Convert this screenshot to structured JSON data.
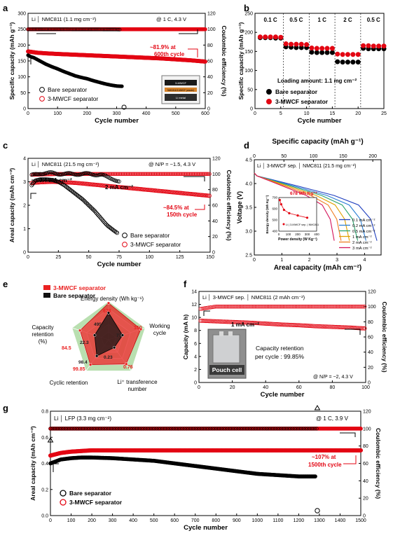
{
  "panel_letters": [
    "a",
    "b",
    "c",
    "d",
    "e",
    "f",
    "g"
  ],
  "chart_data": [
    {
      "panel": "a",
      "type": "scatter",
      "title": "Li │ NMC811 (1.1 mg cm⁻²)",
      "condition": "@ 1 C, 4.3 V",
      "xlabel": "Cycle number",
      "ylabel": "Specific capacity (mAh g⁻¹)",
      "y2label": "Coulombic efficiency (%)",
      "xlim": [
        0,
        600
      ],
      "ylim": [
        0,
        300
      ],
      "y2lim": [
        0,
        120
      ],
      "xticks": [
        "0",
        "100",
        "200",
        "300",
        "400",
        "500",
        "600"
      ],
      "yticks": [
        "0",
        "50",
        "100",
        "150",
        "200",
        "250",
        "300"
      ],
      "y2ticks": [
        "0",
        "20",
        "40",
        "60",
        "80",
        "100",
        "120"
      ],
      "annotation": [
        "~81.9% at",
        "600th cycle"
      ],
      "inset_labels": [
        "3-MWCF",
        "NMC811/3-MWCF (anode)",
        "Li metal"
      ],
      "series": [
        {
          "name": "Bare separator",
          "color": "#000000",
          "axis": "left",
          "x": [
            0,
            10,
            20,
            40,
            60,
            80,
            100,
            120,
            140,
            160,
            180,
            200,
            220,
            240,
            260,
            280,
            300,
            320
          ],
          "y": [
            168,
            163,
            160,
            150,
            140,
            132,
            125,
            117,
            110,
            103,
            98,
            94,
            88,
            83,
            78,
            74,
            71,
            70
          ]
        },
        {
          "name": "3-MWCF separator",
          "color": "#e30613",
          "axis": "left",
          "x": [
            0,
            30,
            60,
            100,
            150,
            200,
            250,
            300,
            350,
            400,
            450,
            500,
            550,
            600
          ],
          "y": [
            180,
            176,
            174,
            172,
            170,
            168,
            166,
            164,
            162,
            160,
            158,
            155,
            152,
            148
          ]
        },
        {
          "name": "CE Bare",
          "color": "#000000",
          "axis": "right",
          "x": [
            0,
            50,
            100,
            150,
            200,
            250,
            300,
            310
          ],
          "y": [
            99.8,
            99.9,
            99.9,
            99.8,
            99.8,
            99.7,
            99.6,
            99.5
          ]
        },
        {
          "name": "CE 3-MWCF",
          "color": "#e30613",
          "axis": "right",
          "x": [
            0,
            100,
            200,
            300,
            400,
            500,
            600
          ],
          "y": [
            99.9,
            99.9,
            99.9,
            99.9,
            99.9,
            99.9,
            99.9
          ]
        }
      ]
    },
    {
      "panel": "b",
      "type": "scatter",
      "xlabel": "Cycle number",
      "ylabel": "Specific capacity (mAh g⁻¹)",
      "xlim": [
        0,
        25
      ],
      "ylim": [
        0,
        250
      ],
      "xticks": [
        "0",
        "5",
        "10",
        "15",
        "20",
        "25"
      ],
      "yticks": [
        "0",
        "50",
        "100",
        "150",
        "200",
        "250"
      ],
      "rate_labels": [
        "0.1 C",
        "0.5 C",
        "1 C",
        "2 C",
        "0.5 C"
      ],
      "note": "Loading amount: 1.1 mg cm⁻²",
      "series": [
        {
          "name": "Bare separator",
          "color": "#000000",
          "x": [
            1,
            2,
            3,
            4,
            5,
            6,
            7,
            8,
            9,
            10,
            11,
            12,
            13,
            14,
            15,
            16,
            17,
            18,
            19,
            20,
            21,
            22,
            23,
            24,
            25
          ],
          "y": [
            186,
            186,
            186,
            185,
            185,
            162,
            161,
            160,
            160,
            160,
            148,
            147,
            147,
            147,
            147,
            123,
            122,
            122,
            122,
            122,
            158,
            157,
            157,
            157,
            157
          ]
        },
        {
          "name": "3-MWCF separator",
          "color": "#e30613",
          "x": [
            1,
            2,
            3,
            4,
            5,
            6,
            7,
            8,
            9,
            10,
            11,
            12,
            13,
            14,
            15,
            16,
            17,
            18,
            19,
            20,
            21,
            22,
            23,
            24,
            25
          ],
          "y": [
            188,
            188,
            188,
            188,
            187,
            170,
            169,
            169,
            169,
            168,
            159,
            158,
            158,
            158,
            158,
            143,
            142,
            142,
            142,
            142,
            165,
            165,
            164,
            164,
            164
          ]
        }
      ]
    },
    {
      "panel": "c",
      "type": "scatter",
      "title": "Li │ NMC811 (21.5 mg cm⁻²)",
      "condition": "@ N/P = ~1.5, 4.3 V",
      "xlabel": "Cycle number",
      "ylabel": "Areal capacity (mAh cm⁻²)",
      "y2label": "Coulombic efficiency (%)",
      "xlim": [
        0,
        150
      ],
      "ylim": [
        0,
        4
      ],
      "y2lim": [
        0,
        120
      ],
      "xticks": [
        "0",
        "25",
        "50",
        "75",
        "100",
        "125",
        "150"
      ],
      "yticks": [
        "0",
        "1",
        "2",
        "3",
        "4"
      ],
      "y2ticks": [
        "0",
        "20",
        "40",
        "60",
        "80",
        "100",
        "120"
      ],
      "labels": [
        "0.4 mA cm⁻²",
        "2 mA cm⁻²"
      ],
      "annotation": [
        "~84.5% at",
        "150th cycle"
      ],
      "series": [
        {
          "name": "Bare separator",
          "color": "#000000",
          "x": [
            3,
            6,
            10,
            15,
            20,
            25,
            30,
            35,
            40,
            45,
            50,
            55,
            60,
            65,
            70,
            74
          ],
          "y": [
            2.85,
            3.05,
            3.1,
            3.1,
            3.08,
            3.0,
            2.85,
            2.65,
            2.45,
            2.25,
            2.0,
            1.75,
            1.45,
            1.15,
            0.95,
            0.8
          ]
        },
        {
          "name": "3-MWCF separator",
          "color": "#e30613",
          "x": [
            3,
            10,
            20,
            30,
            40,
            60,
            80,
            100,
            120,
            140,
            150
          ],
          "y": [
            2.95,
            2.98,
            3.0,
            2.98,
            2.95,
            2.85,
            2.75,
            2.65,
            2.55,
            2.45,
            2.4
          ]
        },
        {
          "name": "CE Bare",
          "color": "#000000",
          "x": [
            3,
            10,
            20,
            30,
            40,
            50,
            60,
            65,
            70,
            75
          ],
          "y": [
            98,
            101,
            101,
            100,
            100,
            100,
            99,
            96,
            94,
            90
          ]
        },
        {
          "name": "CE 3-MWCF",
          "color": "#e30613",
          "x": [
            3,
            25,
            50,
            75,
            100,
            125,
            150
          ],
          "y": [
            99,
            100,
            100,
            100,
            100,
            100,
            100
          ]
        }
      ]
    },
    {
      "panel": "d",
      "type": "line",
      "title": "Li │ 3-MWCF sep. │ NMC811 (21.5 mg cm⁻²)",
      "xlabel": "Areal capacity (mAh cm⁻²)",
      "x2label": "Specific capacity (mAh g⁻¹)",
      "ylabel": "Voltage (V)",
      "xlim": [
        0,
        4.6
      ],
      "ylim": [
        2.5,
        4.5
      ],
      "x2lim": [
        0,
        214
      ],
      "xticks": [
        "0",
        "1",
        "2",
        "3",
        "4"
      ],
      "x2ticks": [
        "0",
        "50",
        "100",
        "150",
        "200"
      ],
      "yticks": [
        "2.5",
        "3.0",
        "3.5",
        "4.0",
        "4.5"
      ],
      "series": [
        {
          "name": "0.1 mA cm⁻²",
          "color": "#1f3fbf",
          "end": 4.45
        },
        {
          "name": "0.2 mA cm⁻²",
          "color": "#2a7fd6",
          "end": 4.05
        },
        {
          "name": "0.5 mA cm⁻²",
          "color": "#2aa36b",
          "end": 3.75
        },
        {
          "name": "1 mA cm⁻²",
          "color": "#e0a100",
          "end": 3.45
        },
        {
          "name": "2 mA cm⁻²",
          "color": "#ef7d22",
          "end": 3.15
        },
        {
          "name": "3 mA cm⁻²",
          "color": "#d4145a",
          "end": 2.9
        }
      ],
      "inset": {
        "annotation": "678 Wh Kg⁻¹",
        "xlabel": "Power density (W Kg⁻¹)",
        "ylabel": "Energy density (Wh Kg⁻¹)",
        "legend": "Li | 3-MWCF sep. | NMC811",
        "xticks": [
          "0",
          "100",
          "200",
          "300",
          "400"
        ],
        "yticks": [
          "400",
          "500",
          "600",
          "700"
        ],
        "x": [
          10,
          25,
          55,
          110,
          200,
          300
        ],
        "y": [
          678,
          640,
          590,
          560,
          540,
          520
        ]
      }
    },
    {
      "panel": "e",
      "type": "radar",
      "axes": [
        "Energy density (Wh kg⁻¹)",
        "Working cycle",
        "Li⁺ transference number",
        "Cyclic retention",
        "Capacity retention (%)"
      ],
      "legend": [
        "3-MWCF separator",
        "Bare separator"
      ],
      "series": [
        {
          "name": "3-MWCF separator",
          "color": "#ea2222",
          "labels": [
            "678",
            "150",
            "0.76",
            "99.85",
            "84.5"
          ],
          "r": [
            0.95,
            0.88,
            0.78,
            0.8,
            0.78
          ]
        },
        {
          "name": "Bare separator",
          "color": "#111111",
          "labels": [
            "495",
            "77",
            "0.23",
            "98.4",
            "22.3"
          ],
          "r": [
            0.7,
            0.38,
            0.25,
            0.52,
            0.38
          ]
        }
      ]
    },
    {
      "panel": "f",
      "type": "scatter",
      "title": "Li │ 3-MWCF sep. │ NMC811 (2 mAh cm⁻²)",
      "condition": "@ N/P = ~2, 4.3 V",
      "xlabel": "Cycle number",
      "ylabel": "Capacity (mA h)",
      "y2label": "Coulombic efficiency (%)",
      "xlim": [
        0,
        100
      ],
      "ylim": [
        0,
        14
      ],
      "y2lim": [
        0,
        120
      ],
      "xticks": [
        "0",
        "20",
        "40",
        "60",
        "80",
        "100"
      ],
      "yticks": [
        "0",
        "2",
        "4",
        "6",
        "8",
        "10",
        "12",
        "14"
      ],
      "y2ticks": [
        "0",
        "20",
        "40",
        "60",
        "80",
        "100",
        "120"
      ],
      "labels": [
        "1 mA cm⁻²",
        "Capacity retention",
        "per cycle : 99.85%",
        "Pouch cell"
      ],
      "series": [
        {
          "name": "Capacity",
          "color": "#e30613",
          "x": [
            1,
            10,
            20,
            30,
            40,
            50,
            60,
            70,
            80,
            90,
            100
          ],
          "y": [
            9.5,
            9.4,
            9.3,
            9.2,
            9.05,
            8.9,
            8.8,
            8.65,
            8.55,
            8.45,
            8.3
          ]
        },
        {
          "name": "CE",
          "color": "#e30613",
          "x": [
            1,
            10,
            20,
            40,
            60,
            80,
            100
          ],
          "y": [
            97,
            100,
            100,
            100,
            100,
            100,
            100
          ]
        }
      ]
    },
    {
      "panel": "g",
      "type": "scatter",
      "title": "Li │ LFP (3.3 mg cm⁻²)",
      "condition": "@ 1 C, 3.9 V",
      "xlabel": "Cycle number",
      "ylabel": "Areal capacity (mAh cm⁻²)",
      "y2label": "Coulombic efficiency (%)",
      "xlim": [
        0,
        1500
      ],
      "ylim": [
        0,
        0.8
      ],
      "y2lim": [
        0,
        120
      ],
      "xticks": [
        "0",
        "100",
        "200",
        "300",
        "400",
        "500",
        "600",
        "700",
        "800",
        "900",
        "1000",
        "1100",
        "1200",
        "1300",
        "1400",
        "1500"
      ],
      "yticks": [
        "0.0",
        "0.2",
        "0.4",
        "0.6",
        "0.8"
      ],
      "y2ticks": [
        "0",
        "20",
        "40",
        "60",
        "80",
        "100",
        "120"
      ],
      "annotation": [
        "~107% at",
        "1500th cycle"
      ],
      "series": [
        {
          "name": "Bare separator",
          "color": "#000000",
          "x": [
            0,
            50,
            100,
            150,
            200,
            300,
            400,
            500,
            600,
            700,
            800,
            900,
            1000,
            1100,
            1200,
            1280
          ],
          "y": [
            0.4,
            0.43,
            0.44,
            0.445,
            0.445,
            0.44,
            0.43,
            0.42,
            0.4,
            0.38,
            0.36,
            0.34,
            0.32,
            0.31,
            0.3,
            0.3
          ]
        },
        {
          "name": "3-MWCF separator",
          "color": "#e30613",
          "x": [
            0,
            50,
            100,
            200,
            300,
            400,
            600,
            800,
            1000,
            1200,
            1400,
            1500
          ],
          "y": [
            0.46,
            0.48,
            0.49,
            0.5,
            0.5,
            0.5,
            0.5,
            0.5,
            0.5,
            0.5,
            0.5,
            0.5
          ]
        },
        {
          "name": "CE Bare",
          "color": "#000000",
          "x": [
            0,
            100,
            300,
            500,
            700,
            900,
            1100,
            1290
          ],
          "y": [
            99.9,
            99.9,
            99.9,
            99.9,
            99.9,
            99.9,
            99.9,
            99.9
          ]
        },
        {
          "name": "CE 3-MWCF",
          "color": "#e30613",
          "x": [
            0,
            250,
            500,
            750,
            1000,
            1250,
            1500
          ],
          "y": [
            100,
            100,
            100,
            100,
            100,
            100,
            100
          ]
        }
      ]
    }
  ]
}
